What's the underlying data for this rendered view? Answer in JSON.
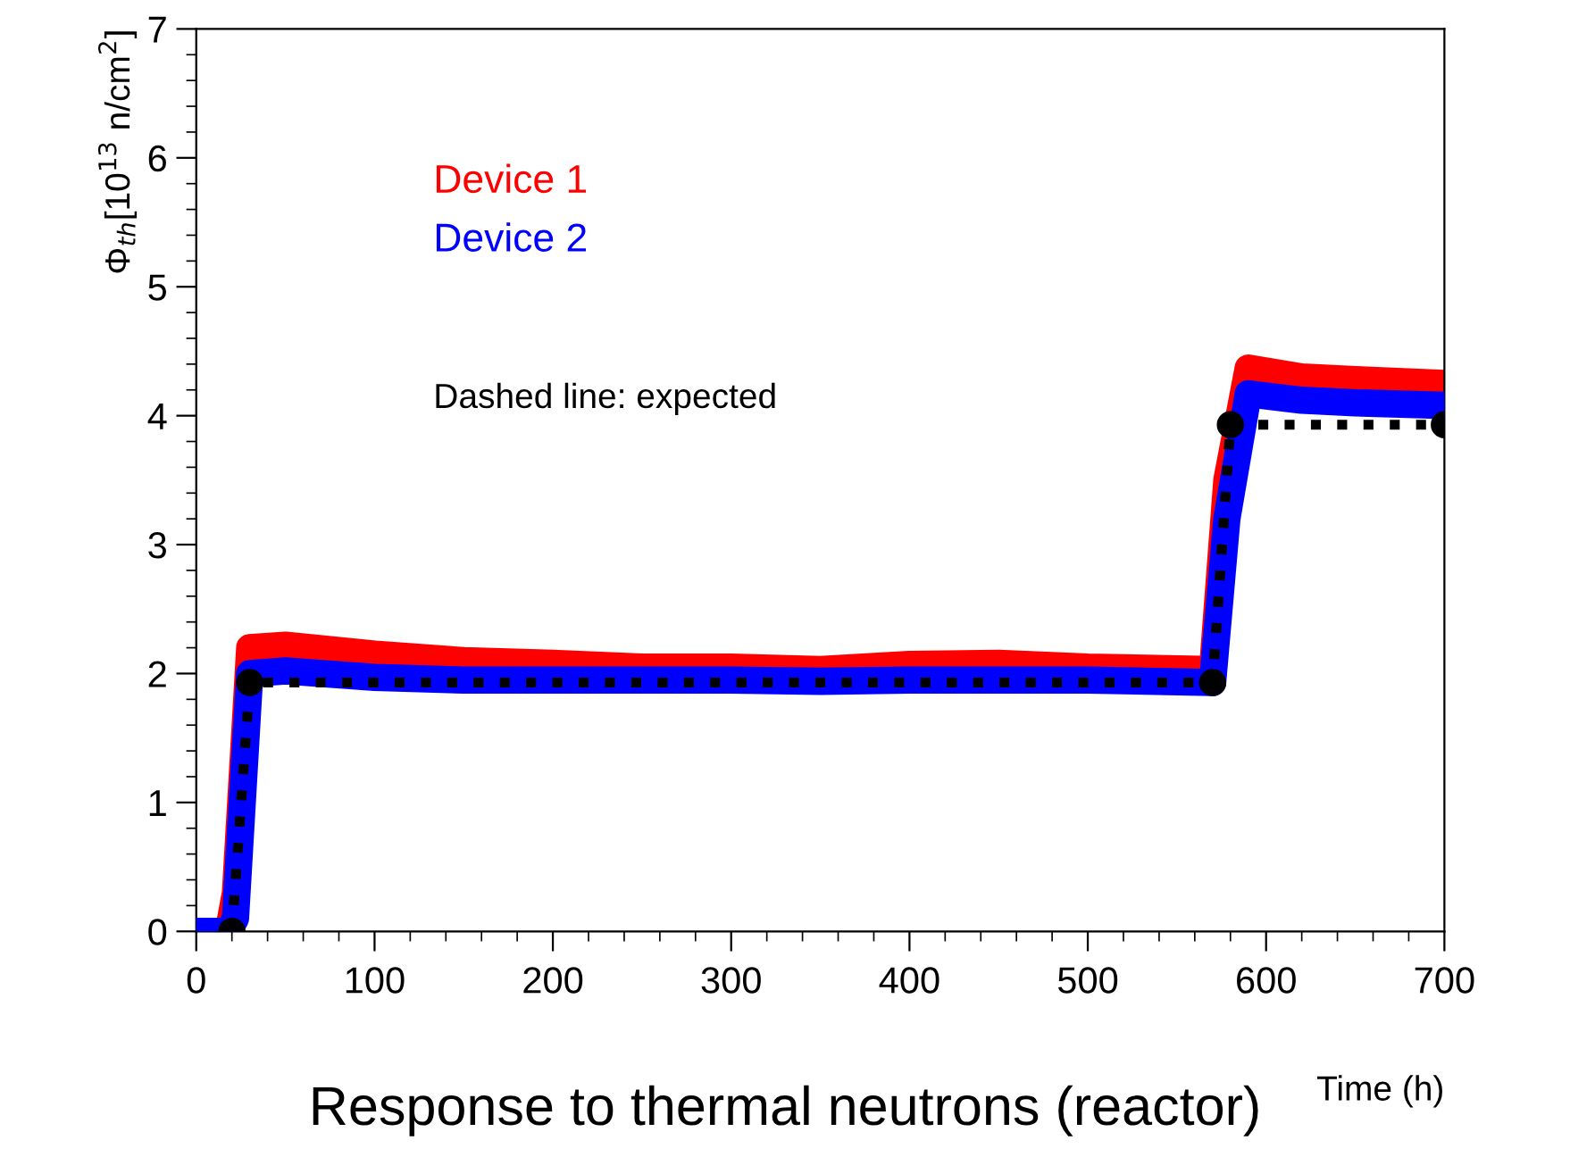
{
  "chart_data": {
    "type": "line",
    "title": "Response to thermal neutrons (reactor)",
    "xlabel": "Time (h)",
    "ylabel": "Φ$_{th}$[10$^{13}$ n/cm$^{2}$]",
    "xlim": [
      0,
      700
    ],
    "xticks": [
      0,
      100,
      200,
      300,
      400,
      500,
      600,
      700
    ],
    "ylim": [
      0,
      7
    ],
    "yticks": [
      0,
      1,
      2,
      3,
      4,
      5,
      6,
      7
    ],
    "grid": false,
    "legend": false,
    "series": [
      {
        "name": "Device 1",
        "color": "#ff0000",
        "x": [
          0,
          18,
          22,
          30,
          50,
          100,
          150,
          200,
          250,
          300,
          350,
          400,
          450,
          500,
          570,
          578,
          590,
          620,
          650,
          700
        ],
        "values": [
          0,
          0,
          0.3,
          2.2,
          2.22,
          2.15,
          2.1,
          2.08,
          2.05,
          2.05,
          2.03,
          2.07,
          2.08,
          2.05,
          2.03,
          3.5,
          4.37,
          4.3,
          4.28,
          4.25
        ]
      },
      {
        "name": "Device 2",
        "color": "#0000ff",
        "x": [
          0,
          18,
          22,
          30,
          50,
          100,
          150,
          200,
          250,
          300,
          350,
          400,
          450,
          500,
          570,
          578,
          590,
          620,
          650,
          700
        ],
        "values": [
          0,
          0,
          0.1,
          2.0,
          2.02,
          1.97,
          1.95,
          1.95,
          1.95,
          1.95,
          1.94,
          1.95,
          1.95,
          1.95,
          1.93,
          3.2,
          4.17,
          4.12,
          4.1,
          4.08
        ]
      },
      {
        "name": "Dashed line: expected",
        "color": "#000000",
        "line_style": "dotted",
        "marker": "circle",
        "x": [
          20,
          30,
          570,
          580,
          700
        ],
        "values": [
          0,
          1.93,
          1.93,
          3.93,
          3.93
        ]
      }
    ]
  }
}
